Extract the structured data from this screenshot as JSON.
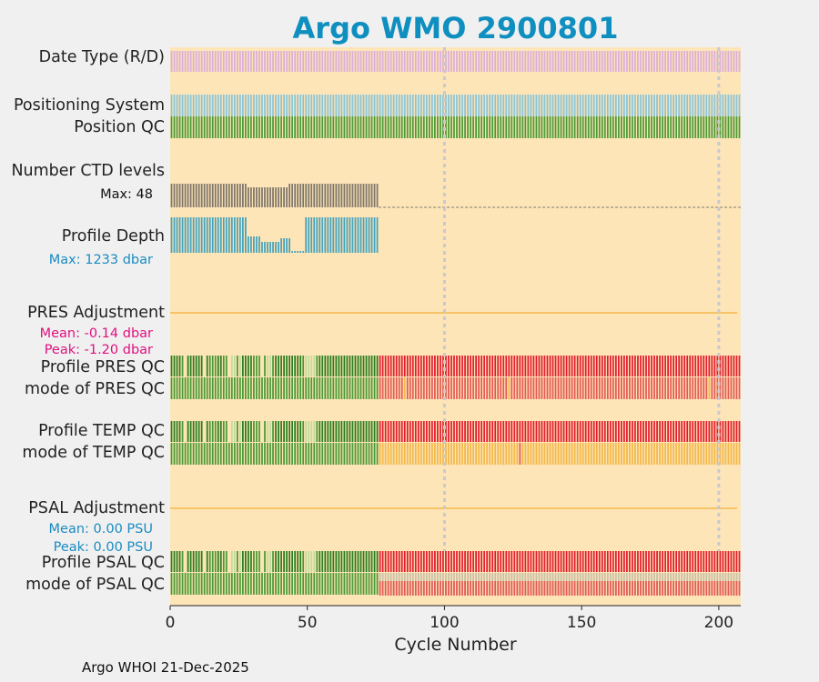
{
  "chart_data": {
    "type": "qc-strip",
    "title": "Argo WMO 2900801",
    "xlabel": "Cycle Number",
    "xlim": [
      0,
      208
    ],
    "xticks": [
      0,
      50,
      100,
      150,
      200
    ],
    "vlines": [
      100,
      200
    ],
    "n_cycles": 208,
    "rows": {
      "date_type": {
        "label": "Date Type (R/D)"
      },
      "positioning": {
        "label": "Positioning System"
      },
      "position_qc": {
        "label": "Position QC"
      },
      "ctd_levels": {
        "label": "Number CTD levels",
        "max_label": "Max: 48",
        "max": 48,
        "last_cycle": 76
      },
      "profile_depth": {
        "label": "Profile Depth",
        "max_label": "Max: 1233 dbar",
        "max": 1233,
        "last_cycle": 76
      },
      "pres_adj": {
        "label": "PRES Adjustment",
        "mean_label": "Mean: -0.14 dbar",
        "peak_label": "Peak: -1.20 dbar"
      },
      "pres_qc": {
        "label": "Profile PRES QC",
        "label2": "mode of PRES QC"
      },
      "temp_qc": {
        "label": "Profile TEMP QC",
        "label2": "mode of TEMP QC"
      },
      "psal_adj": {
        "label": "PSAL Adjustment",
        "mean_label": "Mean: 0.00 PSU",
        "peak_label": "Peak: 0.00 PSU"
      },
      "psal_qc": {
        "label": "Profile PSAL QC",
        "label2": "mode of PSAL QC"
      }
    },
    "colors": {
      "background": "#fde5b8",
      "date_type": "#dcaed9",
      "positioning": "#8ac5d8",
      "position_qc": "#4a9a35",
      "ctd": "#7f766a",
      "depth": "#45a3be",
      "qc_good_dark": "#2a7d1f",
      "qc_good": "#4a9a35",
      "qc_good_light": "#c0dc9a",
      "qc_bad": "#e11d2f",
      "qc_bad_light": "#e45a55",
      "qc_probable": "#f3b84a",
      "qc_psal_grey": "#c7bfa8",
      "adj_line": "#f3b84a",
      "mean_pres": "#e0107f",
      "mean_psal": "#1a8cc0"
    }
  },
  "footer": "Argo WHOI 21-Dec-2025"
}
